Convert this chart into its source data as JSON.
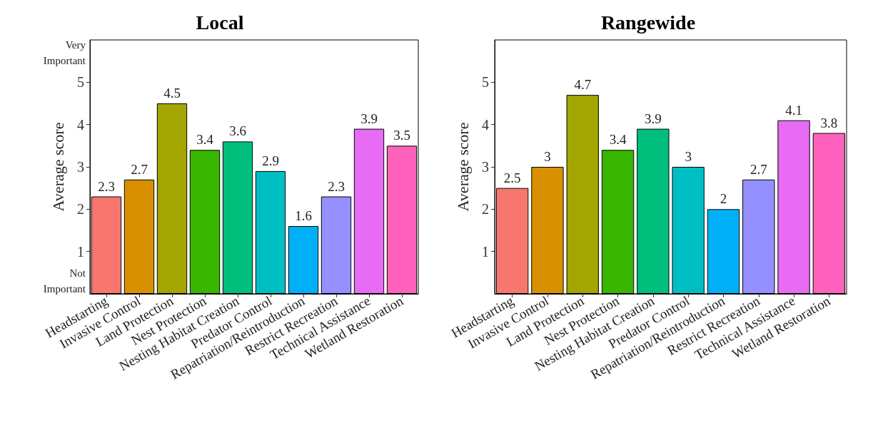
{
  "chart_data": [
    {
      "type": "bar",
      "title": "Local",
      "ylabel": "Average score",
      "categories": [
        "Headstarting",
        "Invasive Control",
        "Land Protection",
        "Nest Protection",
        "Nesting Habitat Creation",
        "Predator Control",
        "Repatriation/Reintroduction",
        "Restrict Recreation",
        "Technical Assistance",
        "Wetland Restoration"
      ],
      "values": [
        2.3,
        2.7,
        4.5,
        3.4,
        3.6,
        2.9,
        1.6,
        2.3,
        3.9,
        3.5
      ],
      "colors": [
        "#f8766d",
        "#d89000",
        "#a3a500",
        "#39b600",
        "#00bf7d",
        "#00bfc4",
        "#00b0f6",
        "#9590ff",
        "#e76bf3",
        "#ff62bc"
      ],
      "ylim": [
        0,
        6
      ],
      "yticks": [
        1,
        2,
        3,
        4,
        5
      ],
      "data_labels": true,
      "annotations": [
        "Very\nImportant",
        "Not\nImportant"
      ]
    },
    {
      "type": "bar",
      "title": "Rangewide",
      "ylabel": "Average score",
      "categories": [
        "Headstarting",
        "Invasive Control",
        "Land Protection",
        "Nest Protection",
        "Nesting Habitat Creation",
        "Predator Control",
        "Repatriation/Reintroduction",
        "Restrict Recreation",
        "Technical Assistance",
        "Wetland Restoration"
      ],
      "values": [
        2.5,
        3,
        4.7,
        3.4,
        3.9,
        3,
        2,
        2.7,
        4.1,
        3.8
      ],
      "colors": [
        "#f8766d",
        "#d89000",
        "#a3a500",
        "#39b600",
        "#00bf7d",
        "#00bfc4",
        "#00b0f6",
        "#9590ff",
        "#e76bf3",
        "#ff62bc"
      ],
      "ylim": [
        0,
        6
      ],
      "yticks": [
        1,
        2,
        3,
        4,
        5
      ],
      "data_labels": true
    }
  ]
}
